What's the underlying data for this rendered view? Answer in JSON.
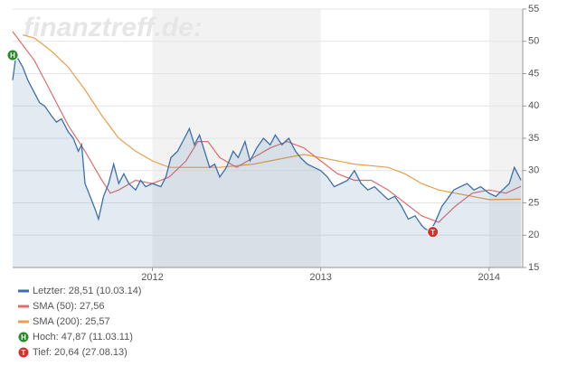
{
  "chart_data": {
    "type": "line",
    "watermark": "finanztreff.de:",
    "xlim": [
      2011.17,
      2014.2
    ],
    "xticks": [
      2012,
      2013,
      2014
    ],
    "ylim": [
      15,
      55
    ],
    "yticks": [
      15,
      20,
      25,
      30,
      35,
      40,
      45,
      50,
      55
    ],
    "grid": true,
    "series": [
      {
        "name": "Letzter: 28,51 (10.03.14)",
        "color": "#3d6fa8",
        "area": true,
        "x": [
          2011.17,
          2011.19,
          2011.23,
          2011.26,
          2011.3,
          2011.33,
          2011.36,
          2011.4,
          2011.43,
          2011.46,
          2011.5,
          2011.53,
          2011.56,
          2011.58,
          2011.6,
          2011.63,
          2011.66,
          2011.68,
          2011.71,
          2011.74,
          2011.77,
          2011.8,
          2011.83,
          2011.86,
          2011.9,
          2011.93,
          2011.96,
          2012.0,
          2012.05,
          2012.08,
          2012.11,
          2012.15,
          2012.19,
          2012.22,
          2012.25,
          2012.28,
          2012.31,
          2012.34,
          2012.37,
          2012.4,
          2012.44,
          2012.48,
          2012.51,
          2012.55,
          2012.58,
          2012.62,
          2012.66,
          2012.7,
          2012.73,
          2012.77,
          2012.81,
          2012.85,
          2012.88,
          2012.92,
          2012.96,
          2013.0,
          2013.04,
          2013.08,
          2013.12,
          2013.16,
          2013.2,
          2013.24,
          2013.28,
          2013.32,
          2013.36,
          2013.4,
          2013.44,
          2013.48,
          2013.52,
          2013.56,
          2013.6,
          2013.62,
          2013.65,
          2013.68,
          2013.72,
          2013.75,
          2013.79,
          2013.83,
          2013.87,
          2013.91,
          2013.95,
          2014.0,
          2014.04,
          2014.08,
          2014.12,
          2014.15,
          2014.18,
          2014.19
        ],
        "values": [
          44,
          47.87,
          46,
          44,
          42,
          40.5,
          40,
          38.5,
          37.5,
          38,
          36,
          35,
          33,
          34,
          28,
          26,
          24,
          22.5,
          26,
          28,
          31,
          28,
          29.5,
          28,
          27,
          28.5,
          27.5,
          28,
          27.5,
          29,
          32,
          33,
          35,
          36.5,
          34,
          35.5,
          33,
          30.5,
          31,
          29,
          30.5,
          33,
          32,
          34.5,
          31.5,
          33.5,
          35,
          34,
          35.5,
          34,
          35,
          33,
          32,
          31,
          30.5,
          30,
          29,
          27.5,
          28,
          28.5,
          30,
          28,
          27,
          27.5,
          26.5,
          25.5,
          26,
          24.5,
          22.5,
          23,
          21.5,
          21,
          20.64,
          22,
          24.5,
          25.5,
          27,
          27.5,
          28,
          27,
          27.5,
          26.5,
          26,
          27,
          28,
          30.5,
          29,
          28.51
        ]
      },
      {
        "name": "SMA (50): 27,56",
        "color": "#e06c6c",
        "x": [
          2011.17,
          2011.3,
          2011.4,
          2011.5,
          2011.6,
          2011.7,
          2011.75,
          2011.8,
          2011.9,
          2012.0,
          2012.1,
          2012.2,
          2012.27,
          2012.33,
          2012.4,
          2012.5,
          2012.6,
          2012.7,
          2012.8,
          2012.9,
          2013.0,
          2013.1,
          2013.2,
          2013.3,
          2013.4,
          2013.5,
          2013.6,
          2013.7,
          2013.8,
          2013.9,
          2014.0,
          2014.1,
          2014.19
        ],
        "values": [
          51.5,
          47,
          42,
          37,
          33,
          28.5,
          26.5,
          27,
          28.5,
          28,
          29,
          31.5,
          34.5,
          34.5,
          32,
          30.5,
          32,
          33.5,
          34.5,
          33.5,
          31.5,
          29.5,
          28.5,
          28.5,
          27,
          25,
          23,
          22,
          24.5,
          26.5,
          27,
          26.5,
          27.56
        ]
      },
      {
        "name": "SMA (200): 25,57",
        "color": "#e8a04a",
        "x": [
          2011.23,
          2011.3,
          2011.4,
          2011.5,
          2011.6,
          2011.7,
          2011.8,
          2011.9,
          2012.0,
          2012.1,
          2012.2,
          2012.4,
          2012.6,
          2012.8,
          2012.9,
          2013.0,
          2013.2,
          2013.4,
          2013.5,
          2013.6,
          2013.7,
          2013.8,
          2013.9,
          2014.0,
          2014.19
        ],
        "values": [
          51,
          50.5,
          48.5,
          46,
          42.5,
          38.5,
          35,
          33,
          31.5,
          30.5,
          30.5,
          30.5,
          31,
          32,
          32.5,
          32,
          31,
          30.5,
          29.5,
          28,
          27,
          26.5,
          26,
          25.5,
          25.57
        ]
      }
    ],
    "markers": [
      {
        "symbol": "H",
        "label": "Hoch: 47,87 (11.03.11)",
        "x": 2011.17,
        "value": 47.87,
        "color": "#2a8a2a"
      },
      {
        "symbol": "T",
        "label": "Tief: 20,64 (27.08.13)",
        "x": 2013.65,
        "value": 20.64,
        "color": "#d9302a"
      }
    ]
  }
}
